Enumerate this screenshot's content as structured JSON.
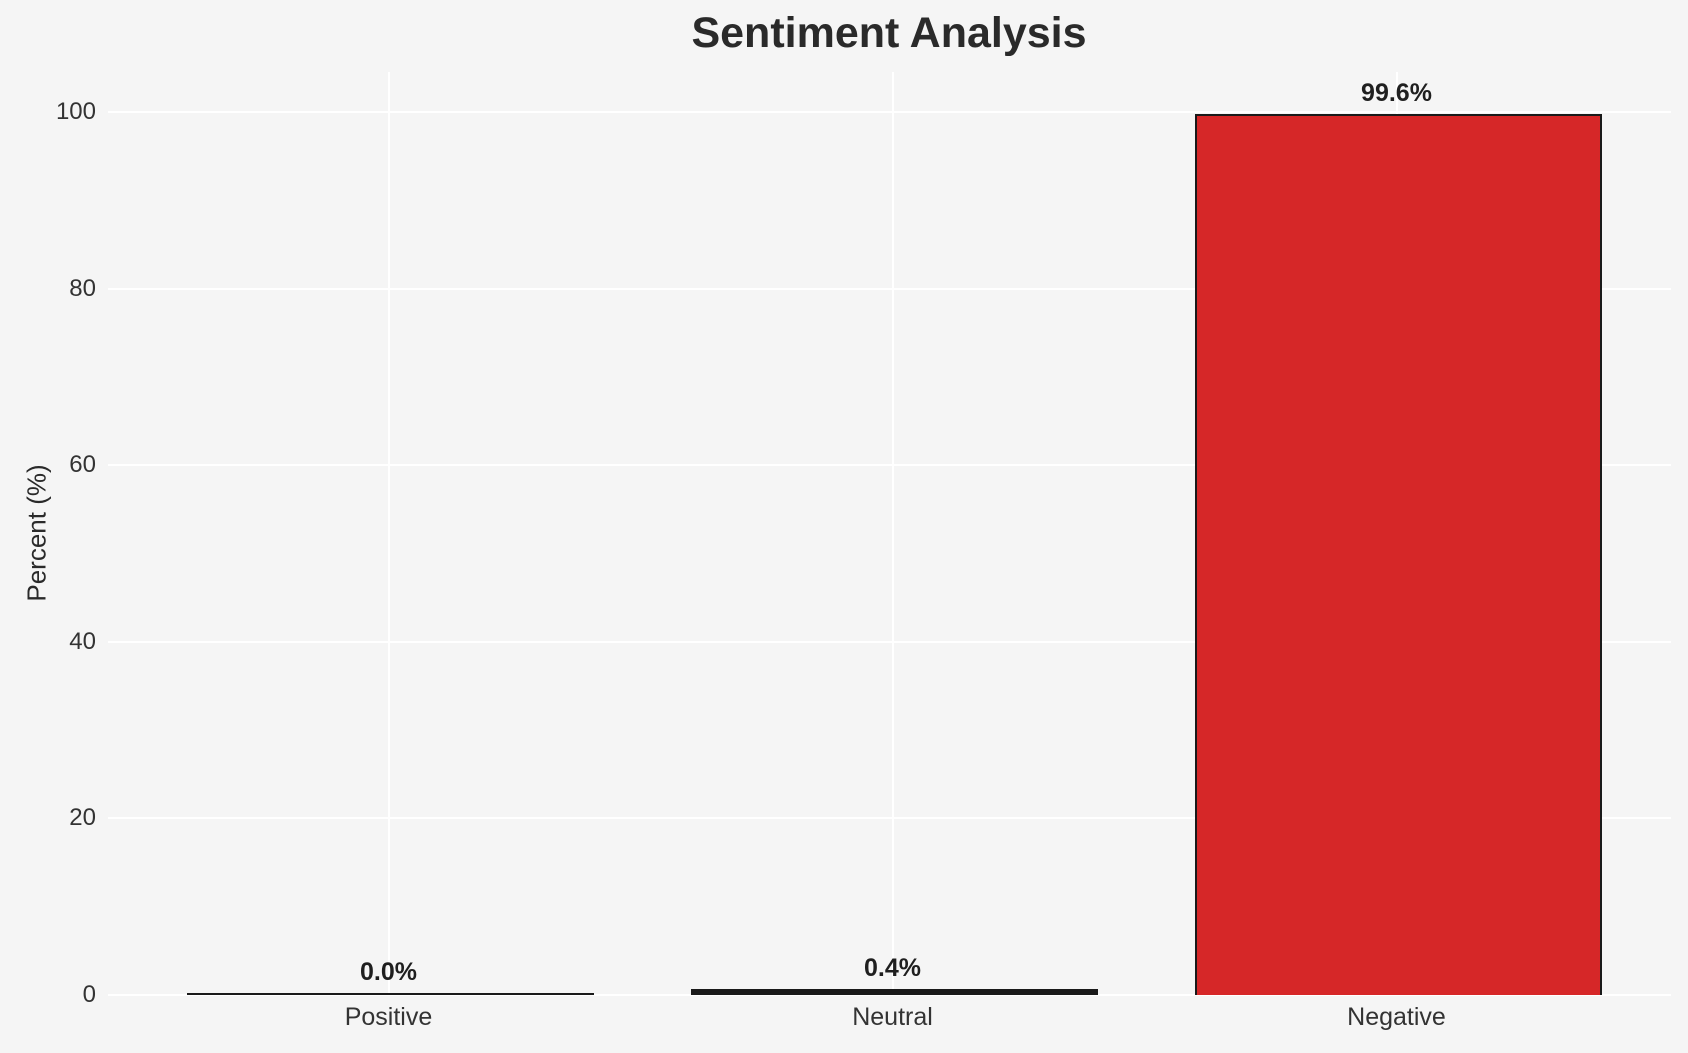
{
  "chart_data": {
    "type": "bar",
    "title": "Sentiment Analysis",
    "ylabel": "Percent (%)",
    "xlabel": "",
    "categories": [
      "Positive",
      "Neutral",
      "Negative"
    ],
    "values": [
      0.0,
      0.4,
      99.6
    ],
    "value_labels": [
      "0.0%",
      "0.4%",
      "99.6%"
    ],
    "bar_colors": [
      "none",
      "#1a1a1a",
      "#d62728"
    ],
    "bar_edge_color": "#1a1a1a",
    "ylim": [
      0,
      104.6
    ],
    "yticks": [
      0,
      20,
      40,
      60,
      80,
      100
    ],
    "grid": true,
    "legend": "none",
    "background_color": "#f5f5f5",
    "gridline_color": "#ffffff",
    "text_color": "#2a2a2a"
  }
}
